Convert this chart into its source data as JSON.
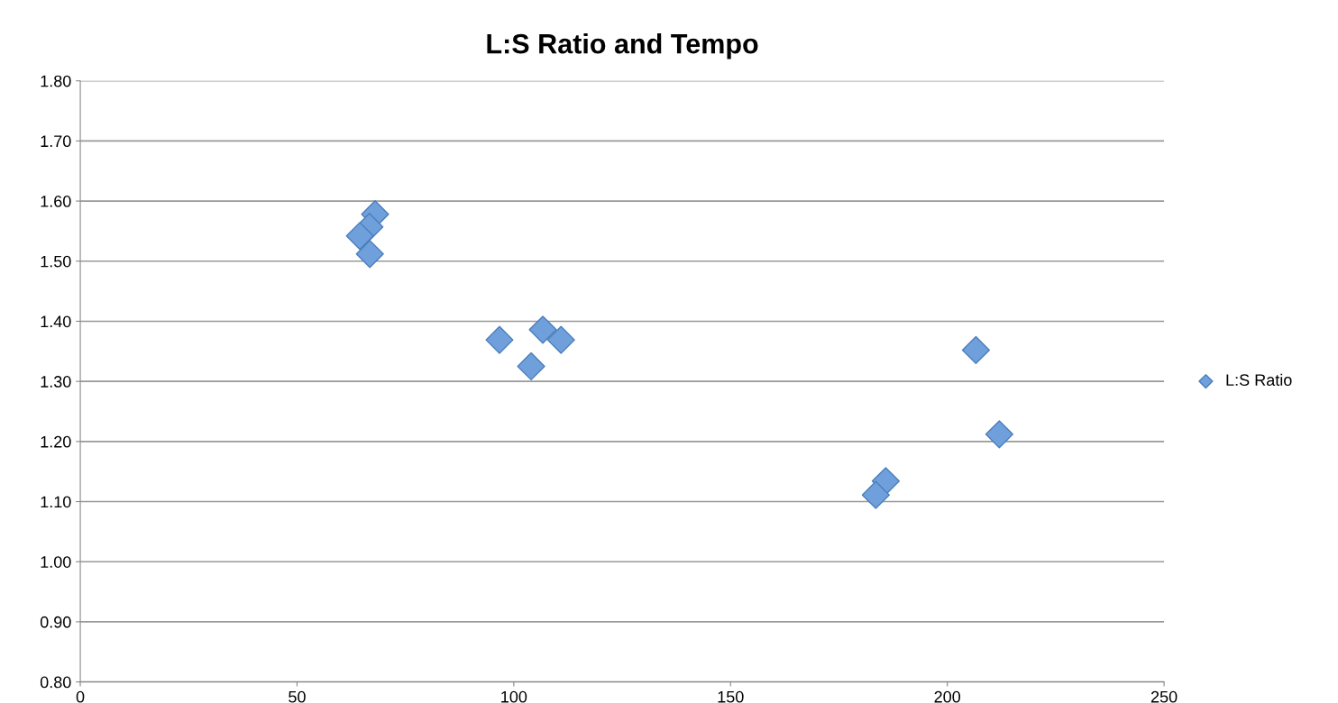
{
  "chart_data": {
    "type": "scatter",
    "title": "L:S Ratio and Tempo",
    "x": [
      68.0,
      66.7,
      64.5,
      66.8,
      96.7,
      106.7,
      110.9,
      104.0,
      206.6,
      212.0,
      185.8,
      183.5
    ],
    "series": [
      {
        "name": "L:S Ratio",
        "color": "#6fa0dc",
        "values": [
          1.578,
          1.557,
          1.542,
          1.512,
          1.369,
          1.386,
          1.369,
          1.325,
          1.352,
          1.212,
          1.134,
          1.111
        ]
      }
    ],
    "xlim": [
      0,
      250
    ],
    "xticks": [
      0,
      50,
      100,
      150,
      200,
      250
    ],
    "ylim": [
      0.8,
      1.8
    ],
    "yticks": [
      {
        "value": 0.8,
        "label": "0.80"
      },
      {
        "value": 0.9,
        "label": "0.90"
      },
      {
        "value": 1.0,
        "label": "1.00"
      },
      {
        "value": 1.1,
        "label": "1.10"
      },
      {
        "value": 1.2,
        "label": "1.20"
      },
      {
        "value": 1.3,
        "label": "1.30"
      },
      {
        "value": 1.4,
        "label": "1.40"
      },
      {
        "value": 1.5,
        "label": "1.50"
      },
      {
        "value": 1.6,
        "label": "1.60"
      },
      {
        "value": 1.7,
        "label": "1.70"
      },
      {
        "value": 1.8,
        "label": "1.80"
      }
    ],
    "grid": "y",
    "legend": "right",
    "marker": "diamond"
  }
}
